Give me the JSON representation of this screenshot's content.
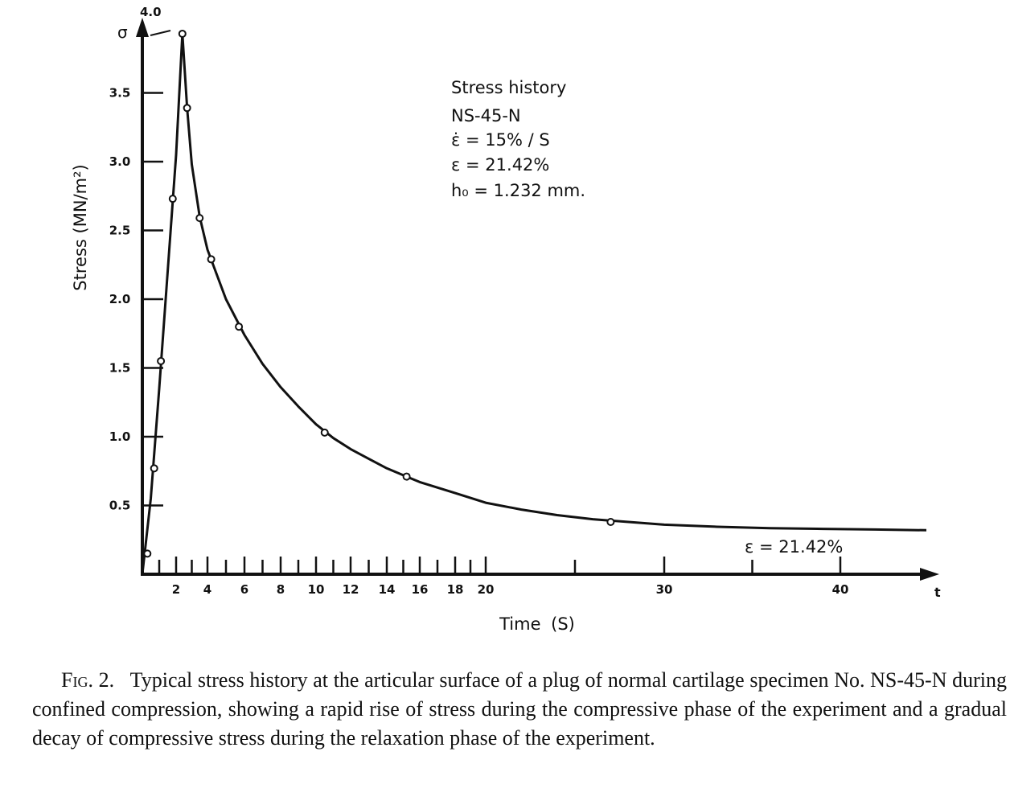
{
  "chart_data": {
    "type": "line",
    "title": "",
    "xlabel": "Time (S)",
    "ylabel": "Stress (MN/m²)",
    "x_axis_symbol": "t",
    "y_axis_symbol": "σ",
    "xlim": [
      0,
      45
    ],
    "ylim": [
      0,
      4.0
    ],
    "x_ticks": [
      1,
      2,
      3,
      4,
      5,
      6,
      7,
      8,
      9,
      10,
      11,
      12,
      13,
      14,
      15,
      16,
      17,
      18,
      19,
      20,
      25,
      30,
      35,
      40
    ],
    "x_tick_labels": [
      "2",
      "4",
      "6",
      "8",
      "10",
      "12",
      "14",
      "16",
      "18",
      "20",
      "30",
      "40"
    ],
    "x_labeled_ticks": [
      2,
      4,
      6,
      8,
      10,
      12,
      14,
      16,
      18,
      20,
      30,
      40
    ],
    "y_ticks": [
      0.5,
      1.0,
      1.5,
      2.0,
      2.5,
      3.0,
      3.5
    ],
    "y_tick_labels": [
      "0.5",
      "1.0",
      "1.5",
      "2.0",
      "2.5",
      "3.0",
      "3.5"
    ],
    "y_top_label": "4.0",
    "grid": false,
    "legend": "none",
    "series": [
      {
        "points": {
          "x": [
            0.3,
            0.7,
            1.1,
            1.8,
            2.4,
            2.7,
            3.5,
            4.2,
            5.7,
            10.5,
            15.2,
            27.0
          ],
          "y": [
            0.15,
            0.77,
            1.55,
            2.73,
            3.93,
            3.39,
            2.59,
            2.29,
            1.8,
            1.03,
            0.71,
            0.38
          ]
        },
        "curve": {
          "x": [
            0.0,
            0.5,
            1.0,
            1.5,
            2.0,
            2.4,
            2.7,
            3.0,
            3.5,
            4.0,
            5.0,
            6.0,
            7.0,
            8.0,
            9.0,
            10.0,
            11.0,
            12.0,
            13.0,
            14.0,
            15.0,
            16.0,
            18.0,
            20.0,
            22.0,
            24.0,
            26.0,
            28.0,
            30.0,
            33.0,
            36.0,
            39.0,
            42.0,
            45.0
          ],
          "y": [
            0.0,
            0.55,
            1.35,
            2.2,
            3.05,
            3.93,
            3.39,
            2.98,
            2.6,
            2.36,
            2.0,
            1.74,
            1.53,
            1.36,
            1.22,
            1.09,
            0.99,
            0.91,
            0.84,
            0.77,
            0.72,
            0.67,
            0.59,
            0.52,
            0.47,
            0.43,
            0.4,
            0.38,
            0.36,
            0.345,
            0.335,
            0.33,
            0.325,
            0.32
          ]
        }
      }
    ],
    "annotations": [
      {
        "lines": [
          "Stress history",
          "NS-45-N",
          "ε̇ = 15% / S",
          "ε = 21.42%",
          "h₀ = 1.232 mm."
        ]
      },
      {
        "text": "ε = 21.42%"
      }
    ]
  },
  "caption": {
    "label": "Fig. 2.",
    "text": "Typical stress history at the articular surface of a plug of normal cartilage specimen No. NS-45-N during confined compression, showing a rapid rise of stress during the compressive phase of the experiment and a gradual decay of compressive stress during the relaxation phase of the experiment."
  }
}
